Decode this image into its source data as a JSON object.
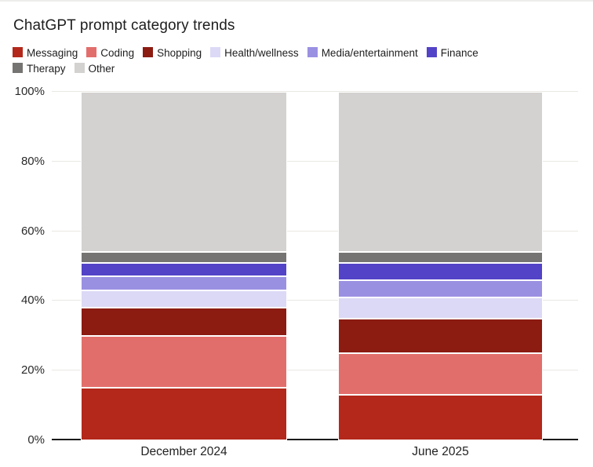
{
  "header": {
    "title": "ChatGPT prompt category trends"
  },
  "chart_data": {
    "type": "bar",
    "stacked": true,
    "title": "ChatGPT prompt category trends",
    "categories": [
      "December 2024",
      "June 2025"
    ],
    "series": [
      {
        "name": "Messaging",
        "color": "#b3281b",
        "values": [
          15,
          13
        ]
      },
      {
        "name": "Coding",
        "color": "#e26e6b",
        "values": [
          15,
          12
        ]
      },
      {
        "name": "Shopping",
        "color": "#8c1b12",
        "values": [
          8,
          10
        ]
      },
      {
        "name": "Health/wellness",
        "color": "#dcd9f6",
        "values": [
          5,
          6
        ]
      },
      {
        "name": "Media/entertainment",
        "color": "#9a90e2",
        "values": [
          4,
          5
        ]
      },
      {
        "name": "Finance",
        "color": "#5343c7",
        "values": [
          4,
          5
        ]
      },
      {
        "name": "Therapy",
        "color": "#767472",
        "values": [
          3,
          3
        ]
      },
      {
        "name": "Other",
        "color": "#d3d2d0",
        "values": [
          46,
          46
        ]
      }
    ],
    "y_ticks": [
      "0%",
      "20%",
      "40%",
      "60%",
      "80%",
      "100%"
    ],
    "ylim": [
      0,
      100
    ],
    "grid": true,
    "legend_position": "top",
    "axis_colors": {
      "gridline": "#eae8e4",
      "baseline": "#1a1a1a",
      "tick_text": "#2a2a2a"
    }
  }
}
